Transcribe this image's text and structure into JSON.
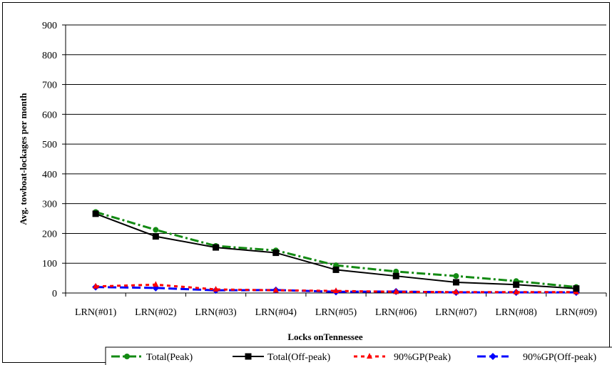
{
  "chart_data": {
    "type": "line",
    "title": "",
    "xlabel": "Locks onTennessee",
    "ylabel": "Avg. towboat-lockages per month",
    "ylim": [
      0,
      900
    ],
    "yticks": [
      0,
      100,
      200,
      300,
      400,
      500,
      600,
      700,
      800,
      900
    ],
    "grid": true,
    "legend_position": "bottom",
    "categories": [
      "LRN(#01)",
      "LRN(#02)",
      "LRN(#03)",
      "LRN(#04)",
      "LRN(#05)",
      "LRN(#06)",
      "LRN(#07)",
      "LRN(#08)",
      "LRN(#09)"
    ],
    "series": [
      {
        "name": "Total(Peak)",
        "color": "#138a13",
        "dash": "dashdot",
        "marker": "circle",
        "values": [
          272,
          212,
          158,
          143,
          93,
          72,
          57,
          40,
          20
        ]
      },
      {
        "name": "Total(Off-peak)",
        "color": "#000000",
        "dash": "solid",
        "marker": "square",
        "values": [
          266,
          190,
          153,
          135,
          78,
          57,
          36,
          28,
          15
        ]
      },
      {
        "name": "90%GP(Peak)",
        "color": "#ff0000",
        "dash": "dash",
        "marker": "triangle",
        "values": [
          22,
          28,
          12,
          9,
          7,
          4,
          3,
          3,
          3
        ]
      },
      {
        "name": "90%GP(Off-peak)",
        "color": "#0000ff",
        "dash": "longdash",
        "marker": "diamond",
        "values": [
          20,
          17,
          9,
          10,
          4,
          5,
          2,
          2,
          2
        ]
      }
    ]
  }
}
